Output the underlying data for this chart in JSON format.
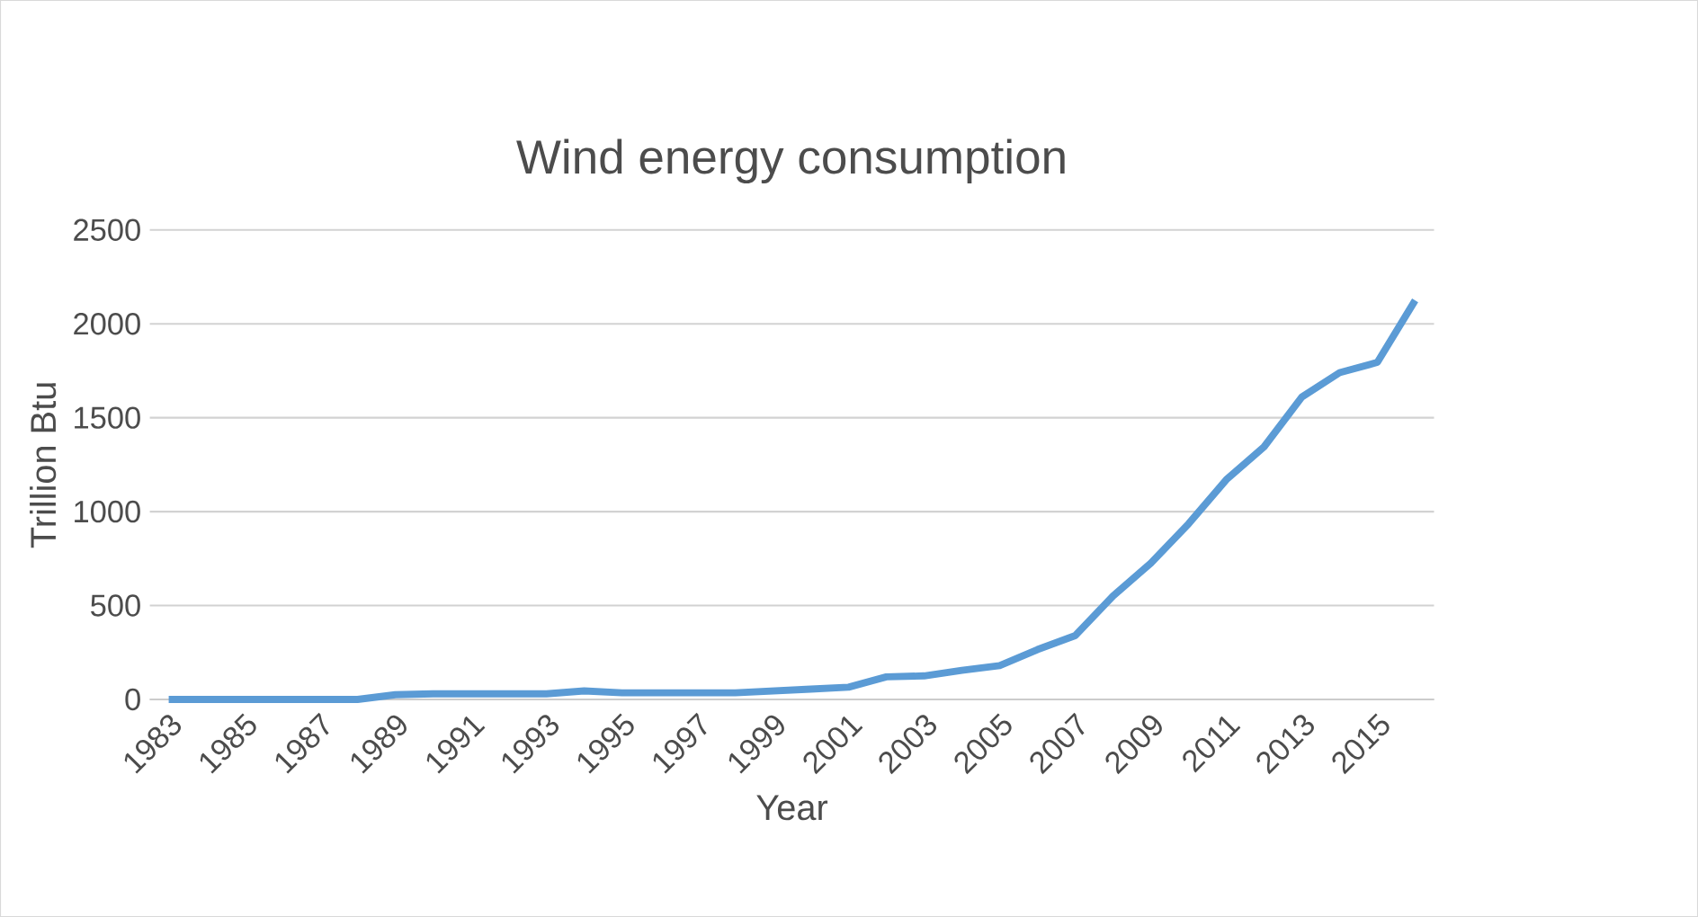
{
  "chart_data": {
    "type": "line",
    "title": "Wind energy consumption",
    "xlabel": "Year",
    "ylabel": "Trillion Btu",
    "categories": [
      "1983",
      null,
      "1985",
      null,
      "1987",
      null,
      "1989",
      null,
      "1991",
      null,
      "1993",
      null,
      "1995",
      null,
      "1997",
      null,
      "1999",
      null,
      "2001",
      null,
      "2003",
      null,
      "2005",
      null,
      "2007",
      null,
      "2009",
      null,
      "2011",
      null,
      "2013",
      null,
      "2015",
      null
    ],
    "series": [
      {
        "color": "#5b9bd5",
        "values": [
          0,
          0,
          0,
          0,
          0,
          0,
          25,
          30,
          30,
          30,
          30,
          45,
          35,
          35,
          35,
          35,
          45,
          55,
          65,
          120,
          125,
          155,
          180,
          265,
          340,
          550,
          725,
          935,
          1170,
          1345,
          1610,
          1740,
          1795,
          2125
        ]
      }
    ],
    "ylim": [
      0,
      2500
    ],
    "yticks": [
      0,
      500,
      1000,
      1500,
      2000,
      2500
    ],
    "grid": "y"
  }
}
